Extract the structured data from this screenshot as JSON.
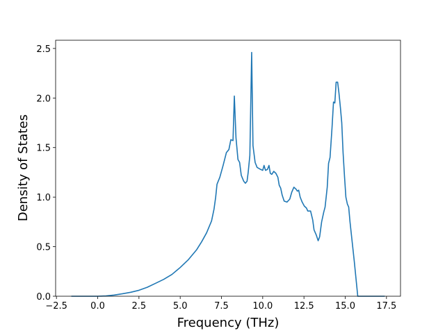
{
  "chart_data": {
    "type": "line",
    "x_label": "Frequency (THz)",
    "y_label": "Density of States",
    "xlim": [
      -2.55,
      18.35
    ],
    "ylim": [
      0,
      2.583
    ],
    "xticks": [
      {
        "value": -2.5,
        "label": "−2.5"
      },
      {
        "value": 0,
        "label": "0.0"
      },
      {
        "value": 2.5,
        "label": "2.5"
      },
      {
        "value": 5,
        "label": "5.0"
      },
      {
        "value": 7.5,
        "label": "7.5"
      },
      {
        "value": 10,
        "label": "10.0"
      },
      {
        "value": 12.5,
        "label": "12.5"
      },
      {
        "value": 15,
        "label": "15.0"
      },
      {
        "value": 17.5,
        "label": "17.5"
      }
    ],
    "yticks": [
      {
        "value": 0,
        "label": "0.0"
      },
      {
        "value": 0.5,
        "label": "0.5"
      },
      {
        "value": 1,
        "label": "1.0"
      },
      {
        "value": 1.5,
        "label": "1.5"
      },
      {
        "value": 2,
        "label": "2.0"
      },
      {
        "value": 2.5,
        "label": "2.5"
      }
    ],
    "series": [
      {
        "color": "#1f77b4",
        "x": [
          -1.6,
          0,
          0.5,
          1.0,
          1.5,
          2.0,
          2.5,
          3.0,
          3.5,
          4.0,
          4.5,
          5.0,
          5.5,
          6.0,
          6.3,
          6.6,
          6.9,
          7.05,
          7.15,
          7.23,
          7.4,
          7.6,
          7.8,
          7.95,
          8.07,
          8.2,
          8.28,
          8.38,
          8.5,
          8.6,
          8.7,
          8.85,
          8.95,
          9.05,
          9.12,
          9.22,
          9.33,
          9.41,
          9.54,
          9.66,
          9.87,
          10.0,
          10.08,
          10.17,
          10.29,
          10.38,
          10.46,
          10.55,
          10.67,
          10.8,
          10.92,
          11.0,
          11.09,
          11.18,
          11.3,
          11.47,
          11.64,
          11.76,
          11.89,
          12.02,
          12.1,
          12.18,
          12.27,
          12.39,
          12.52,
          12.65,
          12.73,
          12.9,
          13.03,
          13.11,
          13.24,
          13.36,
          13.45,
          13.57,
          13.7,
          13.78,
          13.91,
          13.99,
          14.08,
          14.2,
          14.29,
          14.37,
          14.45,
          14.54,
          14.62,
          14.71,
          14.79,
          14.87,
          14.96,
          15.04,
          15.13,
          15.21,
          15.29,
          15.42,
          15.55,
          15.76,
          17.4
        ],
        "values": [
          0,
          0,
          0.003,
          0.012,
          0.025,
          0.04,
          0.06,
          0.09,
          0.13,
          0.17,
          0.22,
          0.29,
          0.37,
          0.47,
          0.55,
          0.64,
          0.76,
          0.88,
          1.0,
          1.13,
          1.2,
          1.32,
          1.45,
          1.48,
          1.58,
          1.57,
          2.02,
          1.6,
          1.38,
          1.35,
          1.22,
          1.16,
          1.14,
          1.16,
          1.25,
          1.42,
          2.46,
          1.52,
          1.35,
          1.3,
          1.28,
          1.27,
          1.32,
          1.27,
          1.28,
          1.32,
          1.24,
          1.23,
          1.26,
          1.24,
          1.2,
          1.12,
          1.09,
          1.02,
          0.96,
          0.95,
          0.98,
          1.05,
          1.1,
          1.08,
          1.06,
          1.07,
          1.0,
          0.95,
          0.91,
          0.89,
          0.86,
          0.86,
          0.77,
          0.67,
          0.62,
          0.56,
          0.6,
          0.75,
          0.85,
          0.9,
          1.1,
          1.34,
          1.4,
          1.7,
          1.96,
          1.95,
          2.16,
          2.16,
          2.05,
          1.9,
          1.75,
          1.45,
          1.2,
          1.0,
          0.93,
          0.9,
          0.75,
          0.55,
          0.35,
          0,
          0
        ]
      }
    ]
  }
}
